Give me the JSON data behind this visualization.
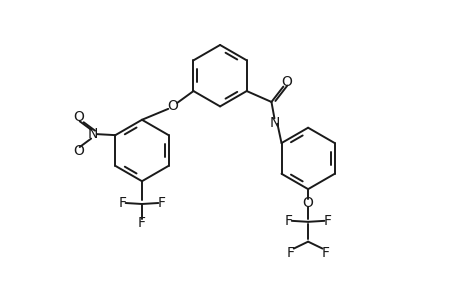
{
  "bg_color": "#ffffff",
  "line_color": "#1a1a1a",
  "line_width": 1.4,
  "font_size": 10,
  "fig_width": 4.6,
  "fig_height": 3.0,
  "dpi": 100,
  "xlim": [
    0,
    9.2
  ],
  "ylim": [
    0,
    6.0
  ]
}
